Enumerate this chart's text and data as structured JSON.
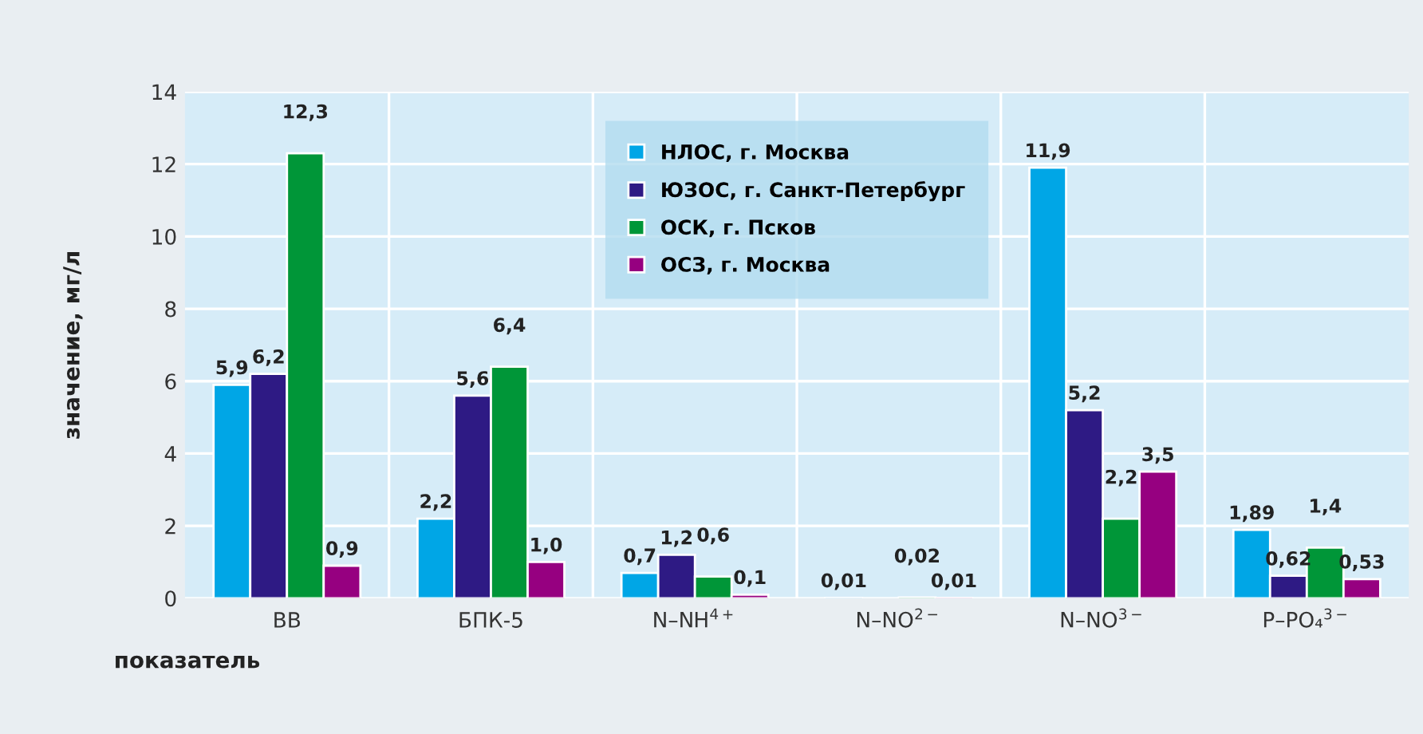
{
  "chart_data": {
    "type": "bar",
    "xlabel": "показатель",
    "ylabel": "значение, мг/л",
    "categories": [
      "ВВ",
      "БПК-5",
      "N–NH$^{4+}$",
      "N–NO$^{2−}$",
      "N–NO$^{3−}$",
      "P–PO₄$^{3−}$"
    ],
    "series": [
      {
        "name": "НЛОС, г. Москва",
        "color": "#00a6e6",
        "values": [
          5.9,
          2.2,
          0.7,
          0.01,
          11.9,
          1.89
        ],
        "value_labels": [
          "5,9",
          "2,2",
          "0,7",
          "0,01",
          "11,9",
          "1,89"
        ]
      },
      {
        "name": "ЮЗОС, г. Санкт-Петербург",
        "color": "#2e1a84",
        "values": [
          6.2,
          5.6,
          1.2,
          null,
          5.2,
          0.62
        ],
        "value_labels": [
          "6,2",
          "5,6",
          "1,2",
          null,
          "5,2",
          "0,62"
        ]
      },
      {
        "name": "ОСК, г. Псков",
        "color": "#009638",
        "values": [
          12.3,
          6.4,
          0.6,
          0.02,
          2.2,
          1.4
        ],
        "value_labels": [
          "12,3",
          "6,4",
          "0,6",
          "0,02",
          "2,2",
          "1,4"
        ]
      },
      {
        "name": "ОСЗ, г. Москва",
        "color": "#960080",
        "values": [
          0.9,
          1.0,
          0.1,
          0.01,
          3.5,
          0.53
        ],
        "value_labels": [
          "0,9",
          "1,0",
          "0,1",
          "0,01",
          "3,5",
          "0,53"
        ]
      }
    ],
    "ylim": [
      0,
      14
    ],
    "yticks": [
      0,
      2,
      4,
      6,
      8,
      10,
      12,
      14
    ],
    "grid": true,
    "legend": "top center"
  }
}
